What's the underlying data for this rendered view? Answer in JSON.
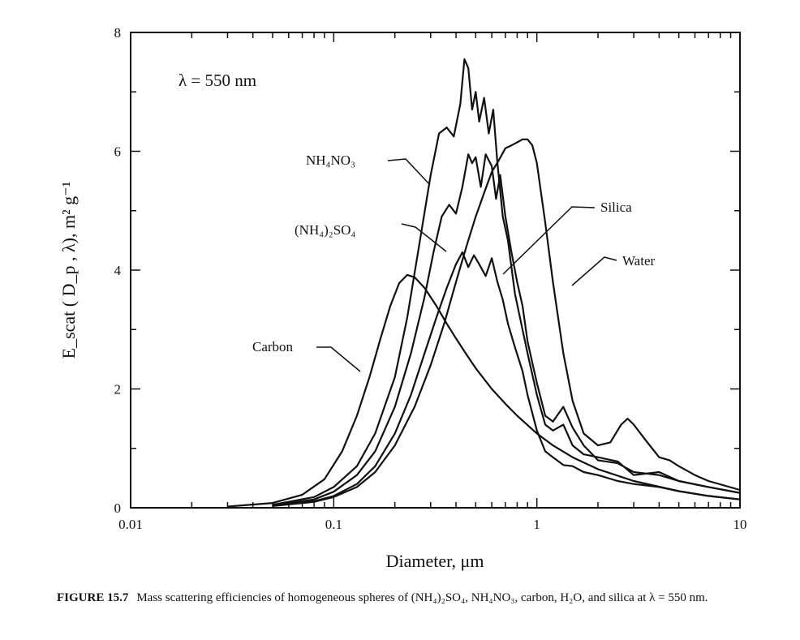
{
  "chart_data": {
    "type": "line",
    "xscale": "log",
    "xlim": [
      0.01,
      10
    ],
    "ylim": [
      0,
      8
    ],
    "x_ticks": [
      {
        "value": 0.01,
        "label": "0.01"
      },
      {
        "value": 0.1,
        "label": "0.1"
      },
      {
        "value": 1,
        "label": "1"
      },
      {
        "value": 10,
        "label": "10"
      }
    ],
    "y_ticks": [
      {
        "value": 0,
        "label": "0"
      },
      {
        "value": 2,
        "label": "2"
      },
      {
        "value": 4,
        "label": "4"
      },
      {
        "value": 6,
        "label": "6"
      },
      {
        "value": 8,
        "label": "8"
      }
    ],
    "xlabel": "Diameter,  μm",
    "ylabel": "E_scat ( D_p , λ),  m² g⁻¹",
    "annotation": "λ = 550 nm",
    "series": [
      {
        "name": "Carbon",
        "x": [
          0.03,
          0.05,
          0.07,
          0.09,
          0.11,
          0.13,
          0.15,
          0.17,
          0.19,
          0.21,
          0.23,
          0.25,
          0.28,
          0.32,
          0.36,
          0.4,
          0.45,
          0.5,
          0.6,
          0.7,
          0.8,
          1.0,
          1.2,
          1.5,
          2,
          3,
          5,
          7,
          10
        ],
        "y": [
          0.02,
          0.08,
          0.22,
          0.48,
          0.95,
          1.55,
          2.2,
          2.85,
          3.4,
          3.78,
          3.92,
          3.88,
          3.7,
          3.4,
          3.1,
          2.85,
          2.58,
          2.35,
          2.0,
          1.75,
          1.55,
          1.25,
          1.05,
          0.85,
          0.65,
          0.45,
          0.28,
          0.2,
          0.14
        ]
      },
      {
        "name": "NH₄NO₃",
        "x": [
          0.05,
          0.08,
          0.1,
          0.13,
          0.16,
          0.2,
          0.23,
          0.26,
          0.3,
          0.33,
          0.36,
          0.39,
          0.42,
          0.44,
          0.46,
          0.48,
          0.5,
          0.52,
          0.55,
          0.58,
          0.61,
          0.64,
          0.68,
          0.72,
          0.78,
          0.85,
          0.9,
          1.0,
          1.1,
          1.2,
          1.35,
          1.5,
          1.7,
          2.0,
          2.5,
          3,
          4,
          5,
          7,
          10
        ],
        "y": [
          0.05,
          0.18,
          0.35,
          0.7,
          1.25,
          2.2,
          3.2,
          4.3,
          5.6,
          6.3,
          6.4,
          6.25,
          6.8,
          7.55,
          7.4,
          6.7,
          7.0,
          6.5,
          6.9,
          6.3,
          6.7,
          5.8,
          4.9,
          4.5,
          3.6,
          3.0,
          2.6,
          1.9,
          1.4,
          1.3,
          1.4,
          1.05,
          0.9,
          0.85,
          0.78,
          0.55,
          0.6,
          0.45,
          0.35,
          0.25
        ]
      },
      {
        "name": "(NH₄)₂SO₄",
        "x": [
          0.05,
          0.08,
          0.1,
          0.13,
          0.16,
          0.2,
          0.24,
          0.28,
          0.31,
          0.34,
          0.37,
          0.4,
          0.43,
          0.46,
          0.48,
          0.5,
          0.53,
          0.56,
          0.6,
          0.63,
          0.66,
          0.7,
          0.75,
          0.8,
          0.85,
          0.9,
          1.0,
          1.1,
          1.2,
          1.35,
          1.5,
          1.7,
          2.0,
          2.5,
          3,
          4,
          5,
          7,
          10
        ],
        "y": [
          0.04,
          0.14,
          0.27,
          0.55,
          0.95,
          1.7,
          2.6,
          3.55,
          4.3,
          4.9,
          5.1,
          4.95,
          5.4,
          5.95,
          5.8,
          5.9,
          5.4,
          5.95,
          5.75,
          5.2,
          5.6,
          4.9,
          4.3,
          3.8,
          3.4,
          2.8,
          2.1,
          1.55,
          1.45,
          1.7,
          1.35,
          1.05,
          0.8,
          0.75,
          0.6,
          0.55,
          0.45,
          0.35,
          0.25
        ]
      },
      {
        "name": "Silica",
        "x": [
          0.05,
          0.08,
          0.1,
          0.13,
          0.16,
          0.2,
          0.24,
          0.28,
          0.32,
          0.36,
          0.4,
          0.43,
          0.46,
          0.49,
          0.52,
          0.56,
          0.6,
          0.64,
          0.68,
          0.72,
          0.78,
          0.85,
          0.9,
          1.0,
          1.1,
          1.2,
          1.35,
          1.5,
          1.7,
          2.0,
          2.5,
          3,
          4,
          5,
          7,
          10
        ],
        "y": [
          0.03,
          0.11,
          0.2,
          0.4,
          0.7,
          1.25,
          1.9,
          2.6,
          3.2,
          3.7,
          4.1,
          4.3,
          4.05,
          4.25,
          4.1,
          3.9,
          4.2,
          3.8,
          3.5,
          3.1,
          2.7,
          2.3,
          1.9,
          1.3,
          0.95,
          0.85,
          0.72,
          0.7,
          0.6,
          0.55,
          0.45,
          0.4,
          0.35,
          0.28,
          0.2,
          0.14
        ]
      },
      {
        "name": "Water",
        "x": [
          0.05,
          0.08,
          0.1,
          0.13,
          0.16,
          0.2,
          0.25,
          0.3,
          0.35,
          0.4,
          0.45,
          0.5,
          0.55,
          0.6,
          0.65,
          0.7,
          0.75,
          0.8,
          0.85,
          0.9,
          0.95,
          1.0,
          1.1,
          1.2,
          1.35,
          1.5,
          1.7,
          2.0,
          2.3,
          2.6,
          2.8,
          3.0,
          3.5,
          4,
          4.5,
          5,
          6,
          7,
          10
        ],
        "y": [
          0.03,
          0.1,
          0.18,
          0.35,
          0.6,
          1.05,
          1.7,
          2.4,
          3.1,
          3.8,
          4.4,
          4.9,
          5.3,
          5.65,
          5.85,
          6.05,
          6.1,
          6.15,
          6.2,
          6.2,
          6.1,
          5.8,
          4.8,
          3.8,
          2.6,
          1.8,
          1.25,
          1.05,
          1.1,
          1.4,
          1.5,
          1.4,
          1.1,
          0.85,
          0.8,
          0.7,
          0.55,
          0.45,
          0.3
        ]
      }
    ]
  },
  "labels": {
    "carbon": "Carbon",
    "nh4no3": "NH₄NO₃",
    "nh4so4": "(NH₄)₂SO₄",
    "silica": "Silica",
    "water": "Water"
  },
  "caption": {
    "figure": "FIGURE 15.7",
    "text": "Mass scattering efficiencies of homogeneous spheres of (NH₄)₂SO₄, NH₄NO₃, carbon, H₂O, and silica at λ = 550 nm."
  }
}
